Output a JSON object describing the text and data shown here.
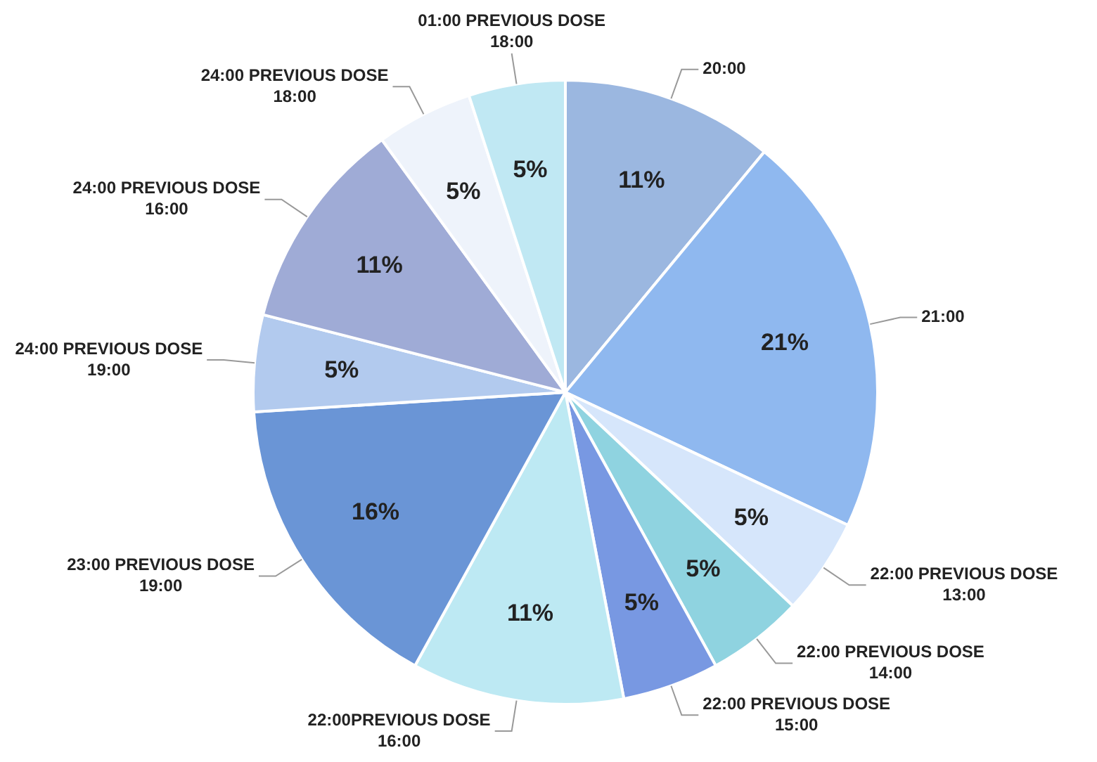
{
  "chart_data": {
    "type": "pie",
    "categories": [
      "20:00",
      "21:00",
      "22:00 PREVIOUS DOSE 13:00",
      "22:00 PREVIOUS DOSE 14:00",
      "22:00 PREVIOUS DOSE 15:00",
      "22:00PREVIOUS DOSE 16:00",
      "23:00 PREVIOUS DOSE 19:00",
      "24:00 PREVIOUS DOSE 19:00",
      "24:00 PREVIOUS DOSE 16:00",
      "24:00 PREVIOUS DOSE 18:00",
      "01:00 PREVIOUS DOSE 18:00"
    ],
    "values": [
      11,
      21,
      5,
      5,
      5,
      11,
      16,
      5,
      11,
      5,
      5
    ],
    "value_labels": [
      "11%",
      "21%",
      "5%",
      "5%",
      "5%",
      "11%",
      "16%",
      "5%",
      "11%",
      "5%",
      "5%"
    ],
    "colors": [
      "#9bb7e0",
      "#8fb8ef",
      "#d6e6fb",
      "#8fd3e0",
      "#7898e2",
      "#bde9f3",
      "#6a95d6",
      "#b2caee",
      "#9fabd6",
      "#eef3fb",
      "#c0e8f3"
    ],
    "legend": false
  }
}
